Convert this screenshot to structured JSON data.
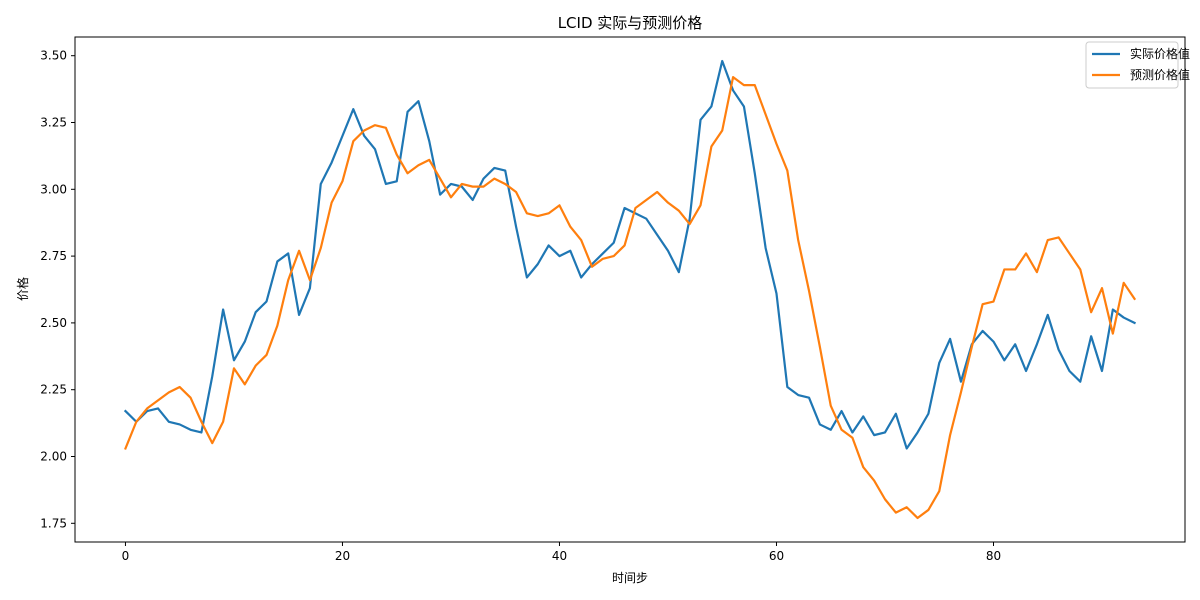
{
  "chart_data": {
    "type": "line",
    "title": "LCID 实际与预测价格",
    "xlabel": "时间步",
    "ylabel": "价格",
    "xlim": [
      -4.65,
      97.65
    ],
    "ylim": [
      1.68,
      3.57
    ],
    "x_ticks": [
      0,
      20,
      40,
      60,
      80
    ],
    "y_ticks": [
      1.75,
      2.0,
      2.25,
      2.5,
      2.75,
      3.0,
      3.25,
      3.5
    ],
    "x_tick_labels": [
      "0",
      "20",
      "40",
      "60",
      "80"
    ],
    "y_tick_labels": [
      "1.75",
      "2.00",
      "2.25",
      "2.50",
      "2.75",
      "3.00",
      "3.25",
      "3.50"
    ],
    "grid": false,
    "legend_position": "top-right",
    "series": [
      {
        "name": "实际价格值",
        "color": "#1f77b4",
        "values": [
          2.17,
          2.13,
          2.17,
          2.18,
          2.13,
          2.12,
          2.1,
          2.09,
          2.3,
          2.55,
          2.36,
          2.43,
          2.54,
          2.58,
          2.73,
          2.76,
          2.53,
          2.63,
          3.02,
          3.1,
          3.2,
          3.3,
          3.2,
          3.15,
          3.02,
          3.03,
          3.29,
          3.33,
          3.18,
          2.98,
          3.02,
          3.01,
          2.96,
          3.04,
          3.08,
          3.07,
          2.86,
          2.67,
          2.72,
          2.79,
          2.75,
          2.77,
          2.67,
          2.72,
          2.76,
          2.8,
          2.93,
          2.91,
          2.89,
          2.83,
          2.77,
          2.69,
          2.89,
          3.26,
          3.31,
          3.48,
          3.37,
          3.31,
          3.06,
          2.78,
          2.61,
          2.26,
          2.23,
          2.22,
          2.12,
          2.1,
          2.17,
          2.09,
          2.15,
          2.08,
          2.09,
          2.16,
          2.03,
          2.09,
          2.16,
          2.35,
          2.44,
          2.28,
          2.42,
          2.47,
          2.43,
          2.36,
          2.42,
          2.32,
          2.42,
          2.53,
          2.4,
          2.32,
          2.28,
          2.45,
          2.32,
          2.55,
          2.52,
          2.5
        ]
      },
      {
        "name": "预测价格值",
        "color": "#ff7f0e",
        "values": [
          2.03,
          2.13,
          2.18,
          2.21,
          2.24,
          2.26,
          2.22,
          2.13,
          2.05,
          2.13,
          2.33,
          2.27,
          2.34,
          2.38,
          2.49,
          2.66,
          2.77,
          2.66,
          2.78,
          2.95,
          3.03,
          3.18,
          3.22,
          3.24,
          3.23,
          3.13,
          3.06,
          3.09,
          3.11,
          3.04,
          2.97,
          3.02,
          3.01,
          3.01,
          3.04,
          3.02,
          2.99,
          2.91,
          2.9,
          2.91,
          2.94,
          2.86,
          2.81,
          2.71,
          2.74,
          2.75,
          2.79,
          2.93,
          2.96,
          2.99,
          2.95,
          2.92,
          2.87,
          2.94,
          3.16,
          3.22,
          3.42,
          3.39,
          3.39,
          3.28,
          3.17,
          3.07,
          2.81,
          2.62,
          2.41,
          2.19,
          2.1,
          2.07,
          1.96,
          1.91,
          1.84,
          1.79,
          1.81,
          1.77,
          1.8,
          1.87,
          2.08,
          2.24,
          2.41,
          2.57,
          2.58,
          2.7,
          2.7,
          2.76,
          2.69,
          2.81,
          2.82,
          2.76,
          2.7,
          2.54,
          2.63,
          2.46,
          2.65,
          2.59
        ]
      }
    ]
  }
}
